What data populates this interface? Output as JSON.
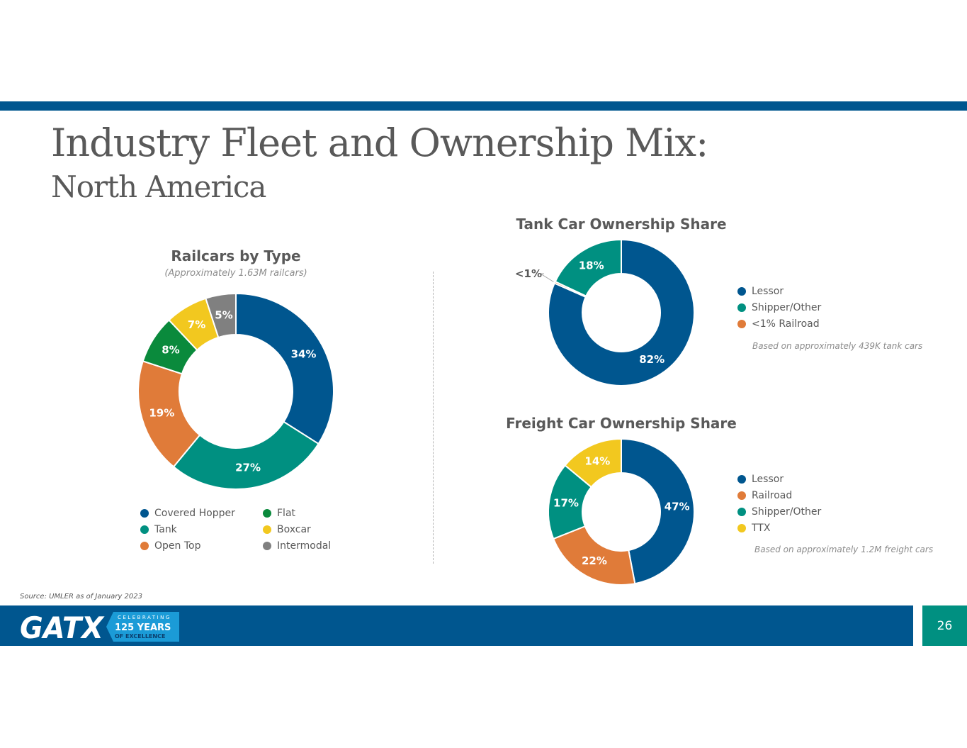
{
  "colors": {
    "brand_blue": "#00568F",
    "teal": "#009081",
    "orange": "#E07B39",
    "green": "#0A8A3C",
    "yellow": "#F2C81F",
    "gray": "#808080",
    "text_gray": "#595959"
  },
  "slide": {
    "title": "Industry Fleet and Ownership Mix:",
    "subtitle": "North America",
    "source": "Source: UMLER as of January 2023",
    "page_number": "26"
  },
  "logo": {
    "brand": "GATX",
    "tag_top": "CELEBRATING",
    "tag_years": "125 YEARS",
    "tag_bottom": "OF EXCELLENCE"
  },
  "chart_data": [
    {
      "id": "railcars",
      "type": "pie",
      "title": "Railcars by Type",
      "subtitle": "(Approximately 1.63M railcars)",
      "categories": [
        "Covered Hopper",
        "Tank",
        "Open Top",
        "Flat",
        "Boxcar",
        "Intermodal"
      ],
      "values": [
        34,
        27,
        19,
        8,
        7,
        5
      ],
      "labels": [
        "34%",
        "27%",
        "19%",
        "8%",
        "7%",
        "5%"
      ],
      "colors": [
        "#00568F",
        "#009081",
        "#E07B39",
        "#0A8A3C",
        "#F2C81F",
        "#808080"
      ],
      "legend": [
        {
          "label": "Covered Hopper",
          "color": "#00568F"
        },
        {
          "label": "Tank",
          "color": "#009081"
        },
        {
          "label": "Open Top",
          "color": "#E07B39"
        },
        {
          "label": "Flat",
          "color": "#0A8A3C"
        },
        {
          "label": "Boxcar",
          "color": "#F2C81F"
        },
        {
          "label": "Intermodal",
          "color": "#808080"
        }
      ]
    },
    {
      "id": "tank",
      "type": "pie",
      "title": "Tank Car Ownership Share",
      "note": "Based on approximately 439K tank cars",
      "categories": [
        "Lessor",
        "Railroad",
        "Shipper/Other"
      ],
      "values": [
        81.6,
        0.4,
        18
      ],
      "labels": [
        "82%",
        "<1%",
        "18%"
      ],
      "colors": [
        "#00568F",
        "#E07B39",
        "#009081"
      ],
      "legend": [
        {
          "label": "Lessor",
          "color": "#00568F"
        },
        {
          "label": "Shipper/Other",
          "color": "#009081"
        },
        {
          "label": "<1%  Railroad",
          "color": "#E07B39"
        }
      ]
    },
    {
      "id": "freight",
      "type": "pie",
      "title": "Freight Car Ownership Share",
      "note": "Based on approximately 1.2M freight cars",
      "categories": [
        "Lessor",
        "Railroad",
        "Shipper/Other",
        "TTX"
      ],
      "values": [
        47,
        22,
        17,
        14
      ],
      "labels": [
        "47%",
        "22%",
        "17%",
        "14%"
      ],
      "colors": [
        "#00568F",
        "#E07B39",
        "#009081",
        "#F2C81F"
      ],
      "legend": [
        {
          "label": "Lessor",
          "color": "#00568F"
        },
        {
          "label": "Railroad",
          "color": "#E07B39"
        },
        {
          "label": "Shipper/Other",
          "color": "#009081"
        },
        {
          "label": "TTX",
          "color": "#F2C81F"
        }
      ]
    }
  ]
}
